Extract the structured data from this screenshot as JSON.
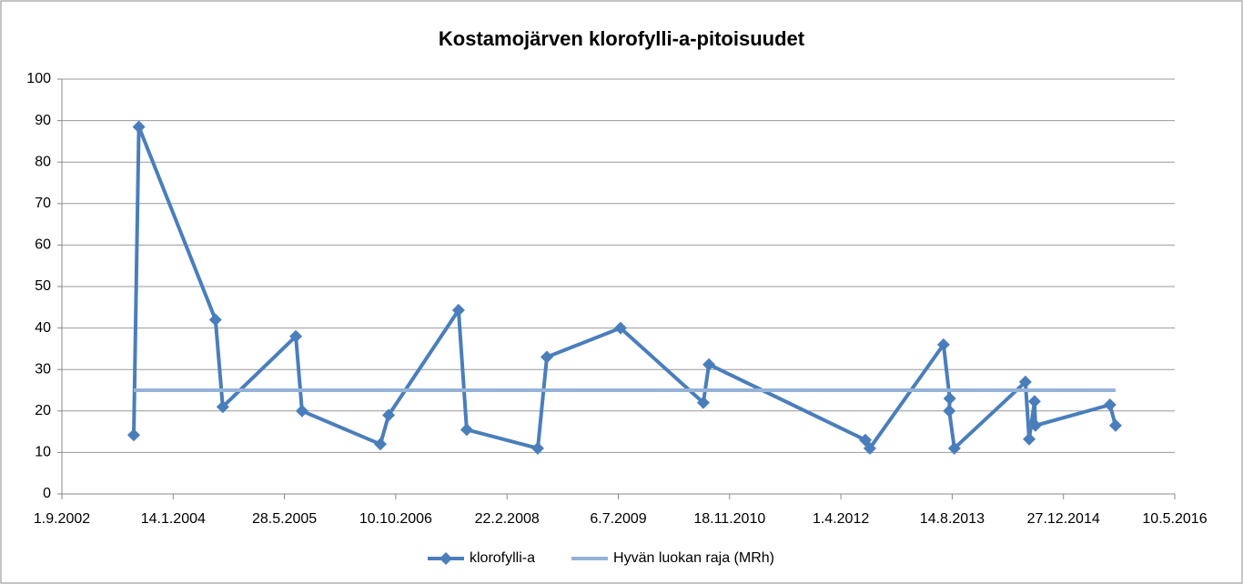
{
  "chart_data": {
    "type": "line",
    "title": "Kostamojärven klorofylli-a-pitoisuudet",
    "series": [
      {
        "name": "klorofylli-a",
        "color": "#4a7ebb",
        "marker": "diamond",
        "x": [
          "2003-07-21",
          "2003-08-13",
          "2004-07-22",
          "2004-08-24",
          "2005-07-18",
          "2005-08-15",
          "2006-08-02",
          "2006-09-08",
          "2007-07-19",
          "2007-08-25",
          "2008-07-09",
          "2008-08-19",
          "2009-07-16",
          "2010-07-23",
          "2010-08-17",
          "2012-07-20",
          "2012-08-09",
          "2013-07-06",
          "2013-08-03",
          "2013-08-01",
          "2013-08-24",
          "2014-07-09",
          "2014-07-26",
          "2014-08-19",
          "2014-08-23",
          "2015-07-24",
          "2015-08-18"
        ],
        "values": [
          14.2,
          88.5,
          42,
          21,
          38,
          20,
          12,
          19,
          44.3,
          15.5,
          11,
          33,
          40,
          22,
          31.2,
          13,
          11,
          36,
          23,
          20,
          11,
          27,
          13.2,
          22.3,
          16.5,
          21.5,
          16.5
        ]
      },
      {
        "name": "Hyvän luokan raja (MRh)",
        "color": "#95b3d7",
        "marker": "none",
        "x": [
          "2003-07-21",
          "2015-08-18"
        ],
        "values": [
          25,
          25
        ]
      }
    ],
    "xlim": [
      "2002-09-01",
      "2016-05-10"
    ],
    "xticks": [
      {
        "value": "2002-09-01",
        "label": "1.9.2002"
      },
      {
        "value": "2004-01-14",
        "label": "14.1.2004"
      },
      {
        "value": "2005-05-28",
        "label": "28.5.2005"
      },
      {
        "value": "2006-10-10",
        "label": "10.10.2006"
      },
      {
        "value": "2008-02-22",
        "label": "22.2.2008"
      },
      {
        "value": "2009-07-06",
        "label": "6.7.2009"
      },
      {
        "value": "2010-11-18",
        "label": "18.11.2010"
      },
      {
        "value": "2012-04-01",
        "label": "1.4.2012"
      },
      {
        "value": "2013-08-14",
        "label": "14.8.2013"
      },
      {
        "value": "2014-12-27",
        "label": "27.12.2014"
      },
      {
        "value": "2016-05-10",
        "label": "10.5.2016"
      }
    ],
    "ylim": [
      0,
      100
    ],
    "yticks": [
      0,
      10,
      20,
      30,
      40,
      50,
      60,
      70,
      80,
      90,
      100
    ],
    "grid": true,
    "legend": "bottom"
  }
}
